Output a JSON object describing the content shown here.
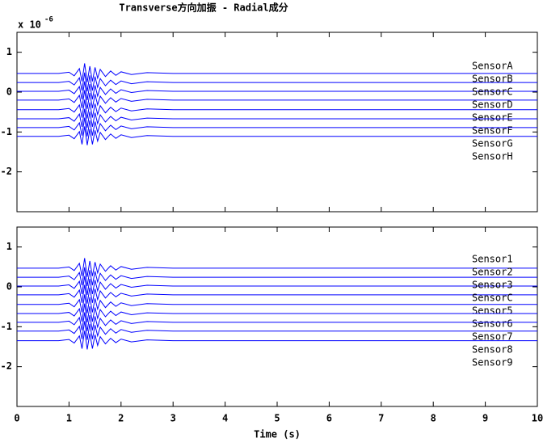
{
  "chart_data": [
    {
      "type": "line",
      "title": "Transverse方向加振 - Radial成分",
      "y_multiplier": {
        "base": "x 10",
        "exponent": "-6"
      },
      "x": [
        0,
        0.8,
        1.0,
        1.1,
        1.2,
        1.25,
        1.3,
        1.35,
        1.4,
        1.45,
        1.5,
        1.55,
        1.6,
        1.7,
        1.8,
        1.9,
        2.0,
        2.2,
        2.5,
        3.0,
        5.0,
        10
      ],
      "xlim": [
        0,
        10
      ],
      "xticks": [
        0,
        1,
        2,
        3,
        4,
        5,
        6,
        7,
        8,
        9,
        10
      ],
      "ylim": [
        -3,
        1.5
      ],
      "yticks": [
        -2,
        -1,
        0,
        1
      ],
      "series": [
        {
          "name": "SensorA",
          "color": "#0000ff",
          "values": [
            0.47,
            0.47,
            0.5,
            0.41,
            0.59,
            0.27,
            0.72,
            0.25,
            0.65,
            0.27,
            0.62,
            0.35,
            0.57,
            0.39,
            0.53,
            0.42,
            0.51,
            0.44,
            0.49,
            0.47,
            0.47,
            0.47
          ]
        },
        {
          "name": "SensorB",
          "color": "#0000ff",
          "values": [
            0.24,
            0.24,
            0.27,
            0.18,
            0.36,
            0.04,
            0.49,
            0.02,
            0.42,
            0.04,
            0.39,
            0.12,
            0.34,
            0.16,
            0.3,
            0.19,
            0.28,
            0.21,
            0.26,
            0.24,
            0.24,
            0.24
          ]
        },
        {
          "name": "SensorC",
          "color": "#0000ff",
          "values": [
            0.02,
            0.02,
            0.05,
            -0.04,
            0.14,
            -0.18,
            0.27,
            -0.2,
            0.2,
            -0.18,
            0.17,
            -0.1,
            0.12,
            -0.06,
            0.08,
            -0.03,
            0.06,
            -0.01,
            0.04,
            0.02,
            0.02,
            0.02
          ]
        },
        {
          "name": "SensorD",
          "color": "#0000ff",
          "values": [
            -0.2,
            -0.2,
            -0.17,
            -0.26,
            -0.08,
            -0.4,
            0.05,
            -0.42,
            -0.02,
            -0.4,
            -0.05,
            -0.32,
            -0.1,
            -0.28,
            -0.14,
            -0.25,
            -0.16,
            -0.23,
            -0.18,
            -0.2,
            -0.2,
            -0.2
          ]
        },
        {
          "name": "SensorE",
          "color": "#0000ff",
          "values": [
            -0.44,
            -0.44,
            -0.41,
            -0.5,
            -0.32,
            -0.64,
            -0.19,
            -0.66,
            -0.26,
            -0.64,
            -0.29,
            -0.56,
            -0.34,
            -0.52,
            -0.38,
            -0.49,
            -0.4,
            -0.47,
            -0.42,
            -0.44,
            -0.44,
            -0.44
          ]
        },
        {
          "name": "SensorF",
          "color": "#0000ff",
          "values": [
            -0.67,
            -0.67,
            -0.64,
            -0.73,
            -0.55,
            -0.87,
            -0.42,
            -0.89,
            -0.49,
            -0.87,
            -0.52,
            -0.79,
            -0.57,
            -0.75,
            -0.61,
            -0.72,
            -0.63,
            -0.7,
            -0.65,
            -0.67,
            -0.67,
            -0.67
          ]
        },
        {
          "name": "SensorG",
          "color": "#0000ff",
          "values": [
            -0.89,
            -0.89,
            -0.86,
            -0.95,
            -0.77,
            -1.09,
            -0.64,
            -1.11,
            -0.71,
            -1.09,
            -0.74,
            -1.01,
            -0.79,
            -0.97,
            -0.83,
            -0.94,
            -0.85,
            -0.92,
            -0.87,
            -0.89,
            -0.89,
            -0.89
          ]
        },
        {
          "name": "SensorH",
          "color": "#0000ff",
          "values": [
            -1.11,
            -1.11,
            -1.08,
            -1.17,
            -0.99,
            -1.31,
            -0.86,
            -1.33,
            -0.93,
            -1.31,
            -0.96,
            -1.23,
            -1.01,
            -1.19,
            -1.05,
            -1.16,
            -1.07,
            -1.14,
            -1.09,
            -1.11,
            -1.11,
            -1.11
          ]
        }
      ]
    },
    {
      "type": "line",
      "x_label": "Time (s)",
      "x": [
        0,
        0.8,
        1.0,
        1.1,
        1.2,
        1.25,
        1.3,
        1.35,
        1.4,
        1.45,
        1.5,
        1.55,
        1.6,
        1.7,
        1.8,
        1.9,
        2.0,
        2.2,
        2.5,
        3.0,
        5.0,
        10
      ],
      "xlim": [
        0,
        10
      ],
      "xticks": [
        0,
        1,
        2,
        3,
        4,
        5,
        6,
        7,
        8,
        9,
        10
      ],
      "ylim": [
        -3,
        1.5
      ],
      "yticks": [
        -2,
        -1,
        0,
        1
      ],
      "series": [
        {
          "name": "Sensor1",
          "color": "#0000ff",
          "values": [
            0.47,
            0.47,
            0.5,
            0.41,
            0.59,
            0.27,
            0.72,
            0.25,
            0.65,
            0.27,
            0.62,
            0.35,
            0.57,
            0.39,
            0.53,
            0.42,
            0.51,
            0.44,
            0.49,
            0.47,
            0.47,
            0.47
          ]
        },
        {
          "name": "Sensor2",
          "color": "#0000ff",
          "values": [
            0.24,
            0.24,
            0.27,
            0.18,
            0.36,
            0.04,
            0.49,
            0.02,
            0.42,
            0.04,
            0.39,
            0.12,
            0.34,
            0.16,
            0.3,
            0.19,
            0.28,
            0.21,
            0.26,
            0.24,
            0.24,
            0.24
          ]
        },
        {
          "name": "Sensor3",
          "color": "#0000ff",
          "values": [
            0.02,
            0.02,
            0.05,
            -0.04,
            0.14,
            -0.18,
            0.27,
            -0.2,
            0.2,
            -0.18,
            0.17,
            -0.1,
            0.12,
            -0.06,
            0.08,
            -0.03,
            0.06,
            -0.01,
            0.04,
            0.02,
            0.02,
            0.02
          ]
        },
        {
          "name": "SensorC",
          "color": "#0000ff",
          "values": [
            -0.2,
            -0.2,
            -0.17,
            -0.26,
            -0.08,
            -0.4,
            0.05,
            -0.42,
            -0.02,
            -0.4,
            -0.05,
            -0.32,
            -0.1,
            -0.28,
            -0.14,
            -0.25,
            -0.16,
            -0.23,
            -0.18,
            -0.2,
            -0.2,
            -0.2
          ]
        },
        {
          "name": "Sensor5",
          "color": "#0000ff",
          "values": [
            -0.44,
            -0.44,
            -0.41,
            -0.5,
            -0.32,
            -0.64,
            -0.19,
            -0.66,
            -0.26,
            -0.64,
            -0.29,
            -0.56,
            -0.34,
            -0.52,
            -0.38,
            -0.49,
            -0.4,
            -0.47,
            -0.42,
            -0.44,
            -0.44,
            -0.44
          ]
        },
        {
          "name": "Sensor6",
          "color": "#0000ff",
          "values": [
            -0.67,
            -0.67,
            -0.64,
            -0.73,
            -0.55,
            -0.87,
            -0.42,
            -0.89,
            -0.49,
            -0.87,
            -0.52,
            -0.79,
            -0.57,
            -0.75,
            -0.61,
            -0.72,
            -0.63,
            -0.7,
            -0.65,
            -0.67,
            -0.67,
            -0.67
          ]
        },
        {
          "name": "Sensor7",
          "color": "#0000ff",
          "values": [
            -0.89,
            -0.89,
            -0.86,
            -0.95,
            -0.77,
            -1.09,
            -0.64,
            -1.11,
            -0.71,
            -1.09,
            -0.74,
            -1.01,
            -0.79,
            -0.97,
            -0.83,
            -0.94,
            -0.85,
            -0.92,
            -0.87,
            -0.89,
            -0.89,
            -0.89
          ]
        },
        {
          "name": "Sensor8",
          "color": "#0000ff",
          "values": [
            -1.11,
            -1.11,
            -1.08,
            -1.17,
            -0.99,
            -1.31,
            -0.86,
            -1.33,
            -0.93,
            -1.31,
            -0.96,
            -1.23,
            -1.01,
            -1.19,
            -1.05,
            -1.16,
            -1.07,
            -1.14,
            -1.09,
            -1.11,
            -1.11,
            -1.11
          ]
        },
        {
          "name": "Sensor9",
          "color": "#0000ff",
          "values": [
            -1.35,
            -1.35,
            -1.32,
            -1.41,
            -1.23,
            -1.55,
            -1.1,
            -1.57,
            -1.17,
            -1.55,
            -1.2,
            -1.47,
            -1.25,
            -1.43,
            -1.29,
            -1.4,
            -1.31,
            -1.38,
            -1.33,
            -1.35,
            -1.35,
            -1.35
          ]
        }
      ]
    }
  ]
}
